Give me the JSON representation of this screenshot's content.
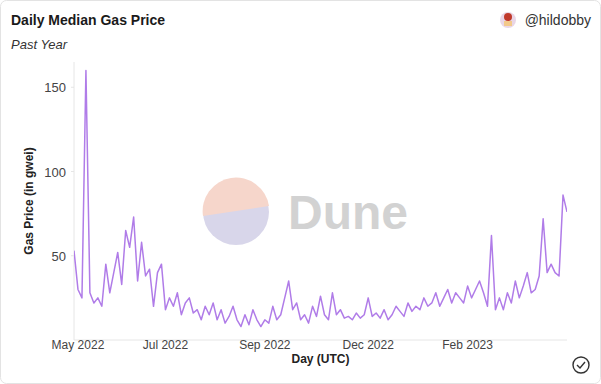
{
  "chart_data": {
    "type": "line",
    "title": "Daily Median Gas Price",
    "subtitle": "Past Year",
    "author": "@hildobby",
    "watermark": "Dune",
    "x_label": "Day (UTC)",
    "y_label": "Gas Price (in gwei)",
    "color": "#b07ce8",
    "grid": false,
    "categories": [
      null,
      "May 2022",
      null,
      null,
      null,
      null,
      null,
      null,
      null,
      null,
      null,
      null,
      null,
      null,
      null,
      null,
      null,
      null,
      null,
      null,
      null,
      null,
      null,
      "Jul 2022",
      null,
      null,
      null,
      null,
      null,
      null,
      null,
      null,
      null,
      null,
      null,
      null,
      null,
      null,
      null,
      null,
      null,
      null,
      null,
      null,
      null,
      null,
      null,
      null,
      "Sep 2022",
      null,
      null,
      null,
      null,
      null,
      null,
      null,
      null,
      null,
      null,
      null,
      null,
      null,
      null,
      null,
      null,
      null,
      null,
      null,
      null,
      null,
      null,
      null,
      null,
      null,
      "Dec 2022",
      null,
      null,
      null,
      null,
      null,
      null,
      null,
      null,
      null,
      null,
      null,
      null,
      null,
      null,
      null,
      null,
      null,
      null,
      null,
      null,
      null,
      null,
      null,
      null,
      "Feb 2023",
      null,
      null,
      null,
      null,
      null,
      null,
      null,
      null,
      null,
      null,
      null,
      null,
      null,
      null,
      null,
      null,
      null,
      null,
      null,
      null,
      null,
      null,
      null,
      null,
      null
    ],
    "values": [
      53,
      30,
      25,
      160,
      28,
      22,
      25,
      20,
      45,
      28,
      40,
      52,
      33,
      65,
      55,
      73,
      35,
      58,
      38,
      42,
      20,
      40,
      45,
      18,
      25,
      20,
      28,
      15,
      22,
      25,
      16,
      18,
      12,
      20,
      15,
      22,
      12,
      18,
      10,
      14,
      20,
      12,
      8,
      15,
      9,
      18,
      12,
      8,
      12,
      10,
      20,
      12,
      15,
      25,
      35,
      18,
      22,
      12,
      15,
      10,
      20,
      14,
      26,
      15,
      12,
      28,
      15,
      18,
      13,
      14,
      12,
      16,
      13,
      15,
      25,
      14,
      16,
      13,
      18,
      12,
      15,
      20,
      17,
      14,
      22,
      17,
      20,
      18,
      25,
      20,
      22,
      28,
      20,
      25,
      30,
      22,
      28,
      25,
      22,
      32,
      25,
      30,
      35,
      28,
      20,
      62,
      18,
      25,
      18,
      28,
      22,
      35,
      25,
      32,
      40,
      28,
      30,
      38,
      72,
      40,
      45,
      40,
      38,
      86,
      76
    ],
    "ylim": [
      0,
      165
    ],
    "yticks": [
      50,
      100,
      150
    ]
  }
}
